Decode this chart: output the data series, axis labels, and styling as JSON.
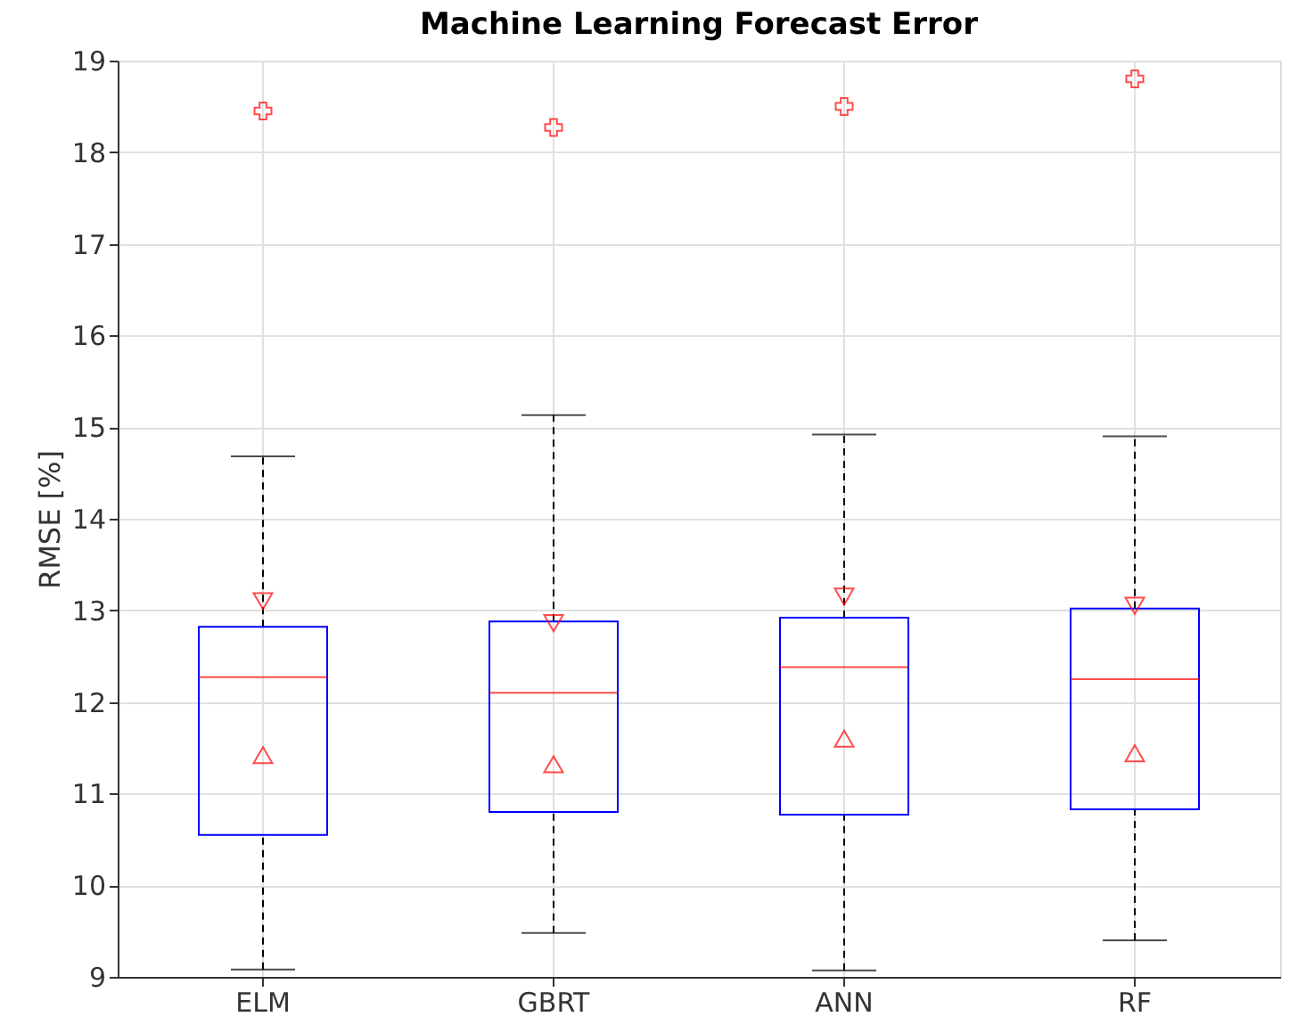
{
  "chart_data": {
    "type": "box",
    "title": "Machine Learning Forecast Error",
    "ylabel": "RMSE [%]",
    "categories": [
      "ELM",
      "GBRT",
      "ANN",
      "RF"
    ],
    "boxes": [
      {
        "low": 9.08,
        "q1": 10.55,
        "median": 12.27,
        "q3": 12.82,
        "high": 14.68,
        "outliers": [
          18.45
        ]
      },
      {
        "low": 9.48,
        "q1": 10.8,
        "median": 12.1,
        "q3": 12.88,
        "high": 15.13,
        "outliers": [
          18.27
        ]
      },
      {
        "low": 9.07,
        "q1": 10.77,
        "median": 12.38,
        "q3": 12.92,
        "high": 14.92,
        "outliers": [
          18.5
        ]
      },
      {
        "low": 9.4,
        "q1": 10.83,
        "median": 12.25,
        "q3": 13.02,
        "high": 14.9,
        "outliers": [
          18.8
        ]
      }
    ],
    "series": [
      {
        "type": "scatter",
        "x": [
          "ELM",
          "GBRT",
          "ANN",
          "RF"
        ],
        "values": [
          13.1,
          12.86,
          13.15,
          13.05
        ],
        "color": "#ff0000",
        "marker": "triangle-down"
      },
      {
        "type": "scatter",
        "x": [
          "ELM",
          "GBRT",
          "ANN",
          "RF"
        ],
        "values": [
          11.42,
          11.32,
          11.6,
          11.44
        ],
        "color": "#ff0000",
        "marker": "triangle"
      }
    ],
    "ylim": [
      9,
      19
    ],
    "yticks": [
      9,
      10,
      11,
      12,
      13,
      14,
      15,
      16,
      17,
      18,
      19
    ],
    "grid": true
  }
}
